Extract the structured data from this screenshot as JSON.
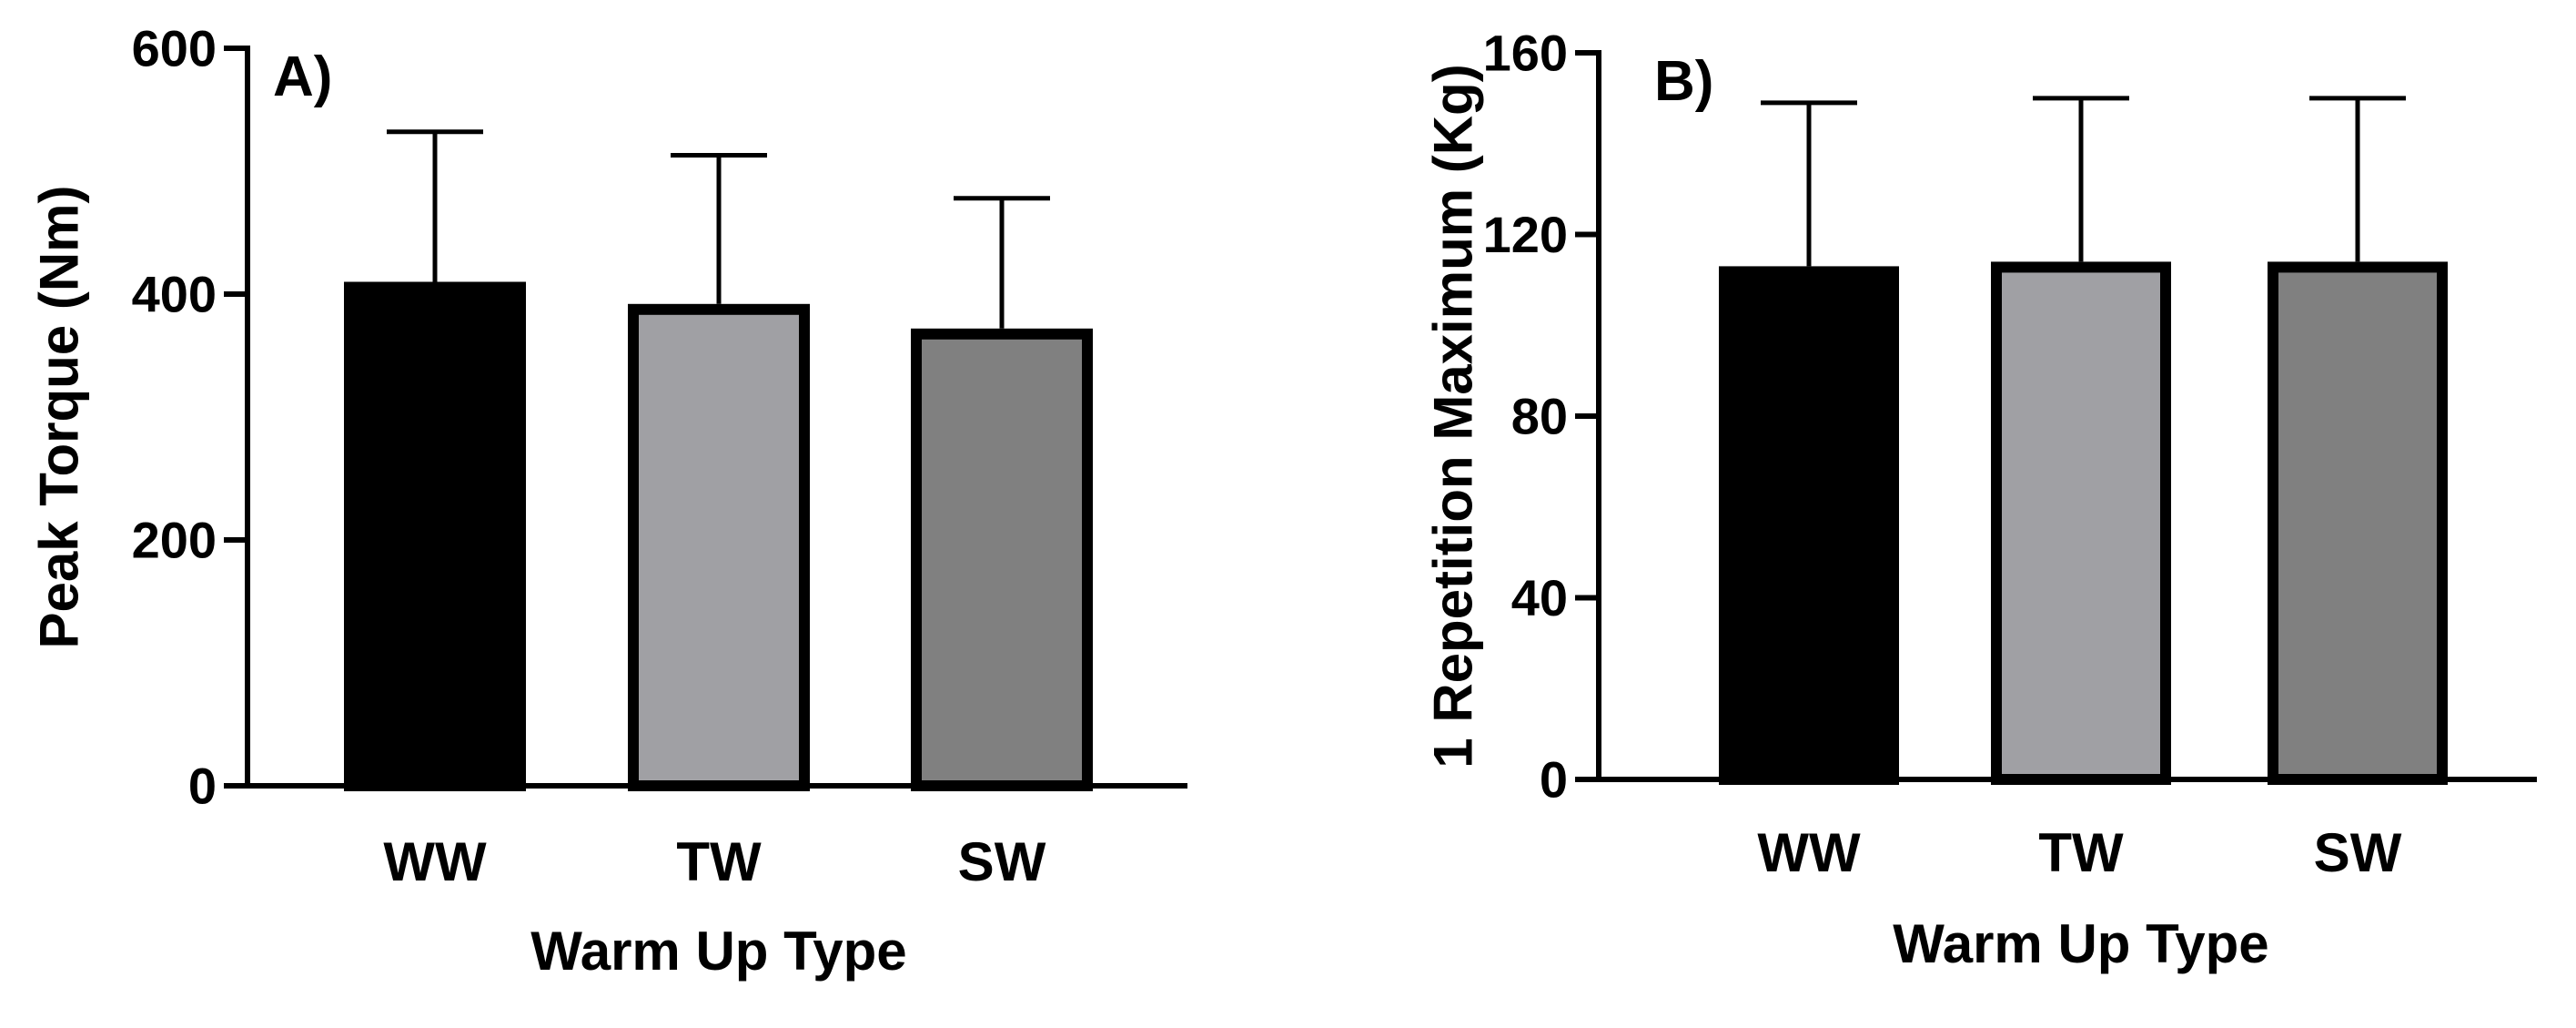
{
  "chart_data": [
    {
      "type": "bar",
      "panel_label": "A)",
      "title": "",
      "categories": [
        "WW",
        "TW",
        "SW"
      ],
      "values": [
        410,
        392,
        372
      ],
      "error_upper": [
        532,
        513,
        478
      ],
      "bar_colors": [
        "#000000",
        "#a0a0a4",
        "#808080"
      ],
      "xlabel": "Warm Up Type",
      "ylabel": "Peak Torque (Nm)",
      "ylim": [
        0,
        600
      ],
      "yticks": [
        0,
        200,
        400,
        600
      ],
      "grid": false
    },
    {
      "type": "bar",
      "panel_label": "B)",
      "title": "",
      "categories": [
        "WW",
        "TW",
        "SW"
      ],
      "values": [
        113,
        114,
        114
      ],
      "error_upper": [
        149,
        150,
        150
      ],
      "bar_colors": [
        "#000000",
        "#a0a0a4",
        "#808080"
      ],
      "xlabel": "Warm Up Type",
      "ylabel": "1 Repetition Maximum (Kg)",
      "ylim": [
        0,
        160
      ],
      "yticks": [
        0,
        40,
        80,
        120,
        160
      ],
      "grid": false
    }
  ]
}
